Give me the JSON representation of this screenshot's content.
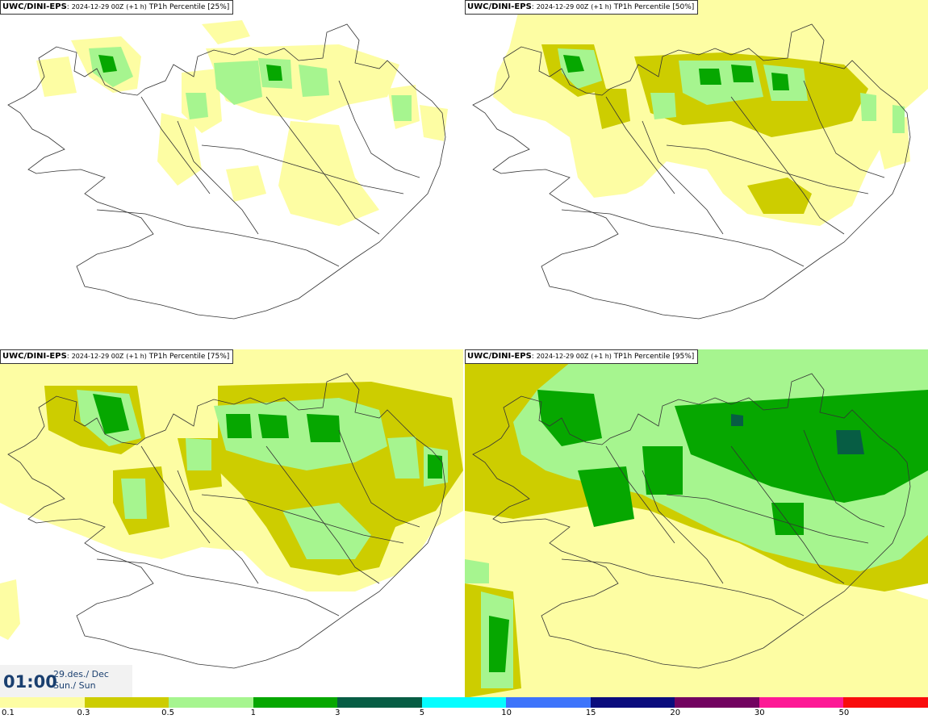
{
  "panels": [
    {
      "model": "UWC/DINI-EPS",
      "sep": ":",
      "init": "2024-12-29 00Z",
      "lead": "(+1 h)",
      "field": "TP1h Percentile [25%]"
    },
    {
      "model": "UWC/DINI-EPS",
      "sep": ":",
      "init": "2024-12-29 00Z",
      "lead": "(+1 h)",
      "field": "TP1h Percentile [50%]"
    },
    {
      "model": "UWC/DINI-EPS",
      "sep": ":",
      "init": "2024-12-29 00Z",
      "lead": "(+1 h)",
      "field": "TP1h Percentile [75%]"
    },
    {
      "model": "UWC/DINI-EPS",
      "sep": ":",
      "init": "2024-12-29 00Z",
      "lead": "(+1 h)",
      "field": "TP1h Percentile [95%]"
    }
  ],
  "valid": {
    "time": "01:00",
    "date_line": "29.des./ Dec",
    "day_line": "Sun./ Sun"
  },
  "colorbar": {
    "colors": [
      "#fdfda3",
      "#cdcd00",
      "#a6f58f",
      "#06a700",
      "#075d44",
      "#05fdff",
      "#3d74fb",
      "#0a0c7d",
      "#720360",
      "#fd1995",
      "#f90c0c"
    ],
    "labels": [
      "0.1",
      "0.3",
      "0.5",
      "1",
      "3",
      "5",
      "10",
      "15",
      "20",
      "30",
      "50"
    ]
  },
  "precip_colors": {
    "light": "#fdfda3",
    "moderate": "#cdcd00",
    "medium": "#a6f58f",
    "heavy": "#06a700",
    "very_heavy": "#075d44"
  }
}
